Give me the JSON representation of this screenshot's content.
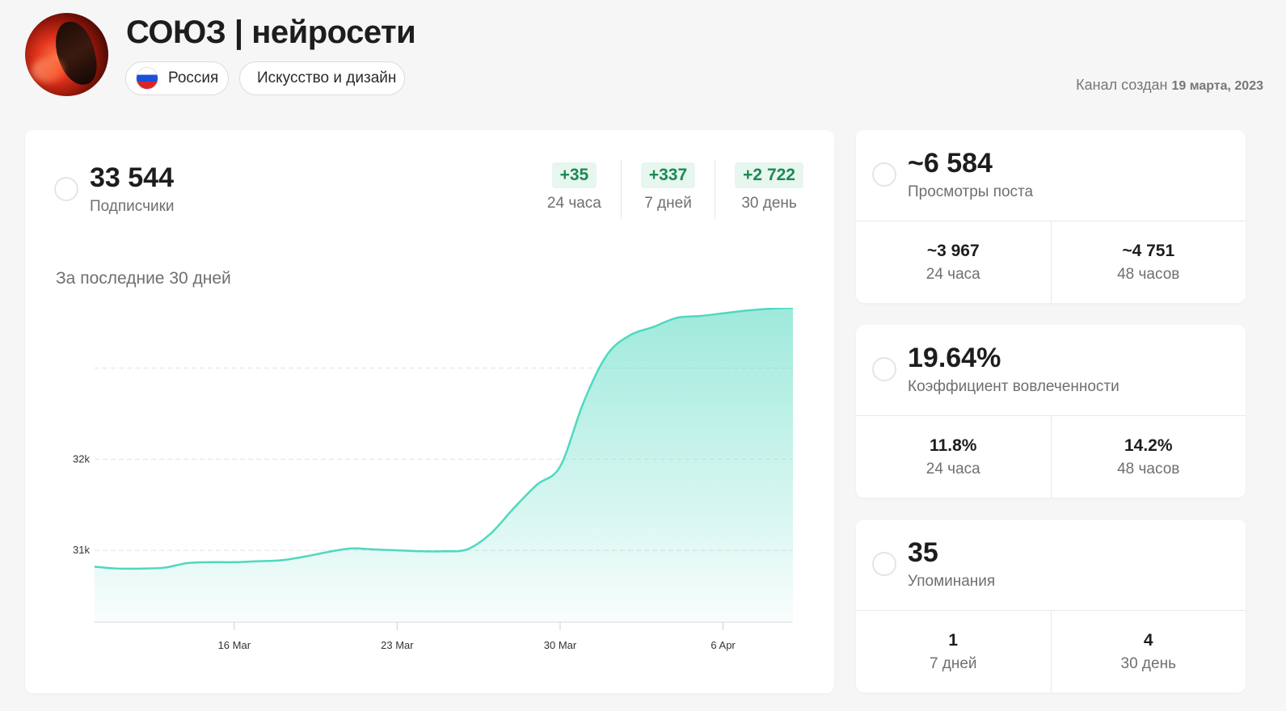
{
  "channel": {
    "title": "СОЮЗ | нейросети",
    "country": "Россия",
    "category": "Искусство и дизайн",
    "created_label": "Канал создан",
    "created_date": "19 марта, 2023"
  },
  "subscribers": {
    "value": "33 544",
    "label": "Подписчики",
    "deltas": [
      {
        "value": "+35",
        "label": "24 часа"
      },
      {
        "value": "+337",
        "label": "7 дней"
      },
      {
        "value": "+2 722",
        "label": "30 день"
      }
    ],
    "range_label": "За последние 30 дней"
  },
  "views": {
    "value": "~6 584",
    "label": "Просмотры поста",
    "cells": [
      {
        "value": "~3 967",
        "label": "24 часа"
      },
      {
        "value": "~4 751",
        "label": "48 часов"
      }
    ]
  },
  "engagement": {
    "value": "19.64%",
    "label": "Коэффициент вовлеченности",
    "cells": [
      {
        "value": "11.8%",
        "label": "24 часа"
      },
      {
        "value": "14.2%",
        "label": "48 часов"
      }
    ]
  },
  "mentions": {
    "value": "35",
    "label": "Упоминания",
    "cells": [
      {
        "value": "1",
        "label": "7 дней"
      },
      {
        "value": "4",
        "label": "30 день"
      }
    ]
  },
  "chart_data": {
    "type": "area",
    "x": [
      "2023-03-10",
      "2023-03-11",
      "2023-03-12",
      "2023-03-13",
      "2023-03-14",
      "2023-03-15",
      "2023-03-16",
      "2023-03-17",
      "2023-03-18",
      "2023-03-19",
      "2023-03-20",
      "2023-03-21",
      "2023-03-22",
      "2023-03-23",
      "2023-03-24",
      "2023-03-25",
      "2023-03-26",
      "2023-03-27",
      "2023-03-28",
      "2023-03-29",
      "2023-03-30",
      "2023-03-31",
      "2023-04-01",
      "2023-04-02",
      "2023-04-03",
      "2023-04-04",
      "2023-04-05",
      "2023-04-06",
      "2023-04-07",
      "2023-04-08",
      "2023-04-09"
    ],
    "values": [
      30820,
      30800,
      30800,
      30810,
      30860,
      30870,
      30870,
      30880,
      30890,
      30930,
      30980,
      31020,
      31010,
      31000,
      30990,
      30990,
      31010,
      31180,
      31460,
      31720,
      31920,
      32620,
      33140,
      33360,
      33450,
      33550,
      33570,
      33600,
      33630,
      33650,
      33660
    ],
    "xticks": [
      "16 Mar",
      "23 Mar",
      "30 Mar",
      "6 Apr"
    ],
    "xtick_dates": [
      "2023-03-16",
      "2023-03-23",
      "2023-03-30",
      "2023-04-06"
    ],
    "yticks": [
      "31k",
      "32k"
    ],
    "ytick_values": [
      31000,
      32000
    ],
    "gridlines": [
      31000,
      32000,
      33000
    ],
    "ylim": [
      30230,
      33660
    ],
    "grid": true,
    "color": "#4fd8bf"
  }
}
